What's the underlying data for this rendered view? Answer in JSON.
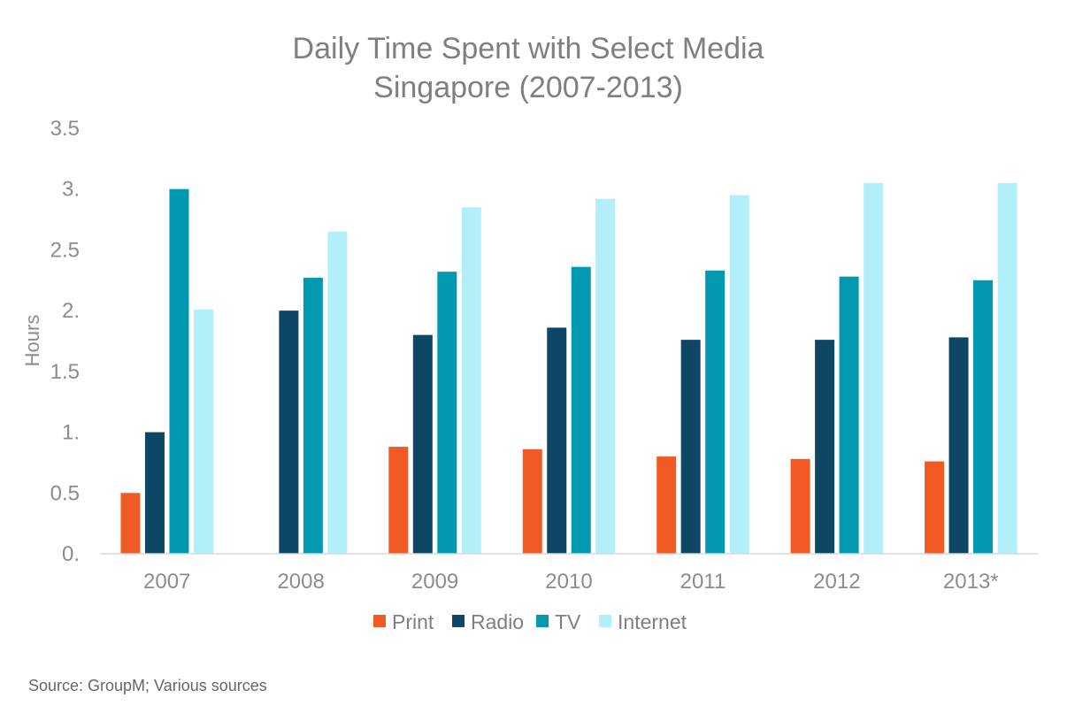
{
  "chart_data": {
    "type": "bar",
    "title": "Daily Time Spent with Select Media",
    "subtitle": "Singapore (2007-2013)",
    "xlabel": "",
    "ylabel": "Hours",
    "ylim": [
      0,
      3.5
    ],
    "yticks": [
      0,
      0.5,
      1,
      1.5,
      2,
      2.5,
      3,
      3.5
    ],
    "ytick_labels": [
      "0.",
      "0.5",
      "1.",
      "1.5",
      "2.",
      "2.5",
      "3.",
      "3.5"
    ],
    "categories": [
      "2007",
      "2008",
      "2009",
      "2010",
      "2011",
      "2012",
      "2013*"
    ],
    "series": [
      {
        "name": "Print",
        "color": "#f15a24",
        "values": [
          0.5,
          null,
          0.88,
          0.86,
          0.8,
          0.78,
          0.76
        ]
      },
      {
        "name": "Radio",
        "color": "#0e4666",
        "values": [
          1.0,
          2.0,
          1.8,
          1.86,
          1.76,
          1.76,
          1.78
        ]
      },
      {
        "name": "TV",
        "color": "#0099b0",
        "values": [
          3.0,
          2.27,
          2.32,
          2.36,
          2.33,
          2.28,
          2.25
        ]
      },
      {
        "name": "Internet",
        "color": "#b3effa",
        "values": [
          2.01,
          2.65,
          2.85,
          2.92,
          2.95,
          3.05,
          3.05
        ]
      }
    ],
    "grid": false,
    "legend": "bottom"
  },
  "source": "Source: GroupM; Various sources"
}
